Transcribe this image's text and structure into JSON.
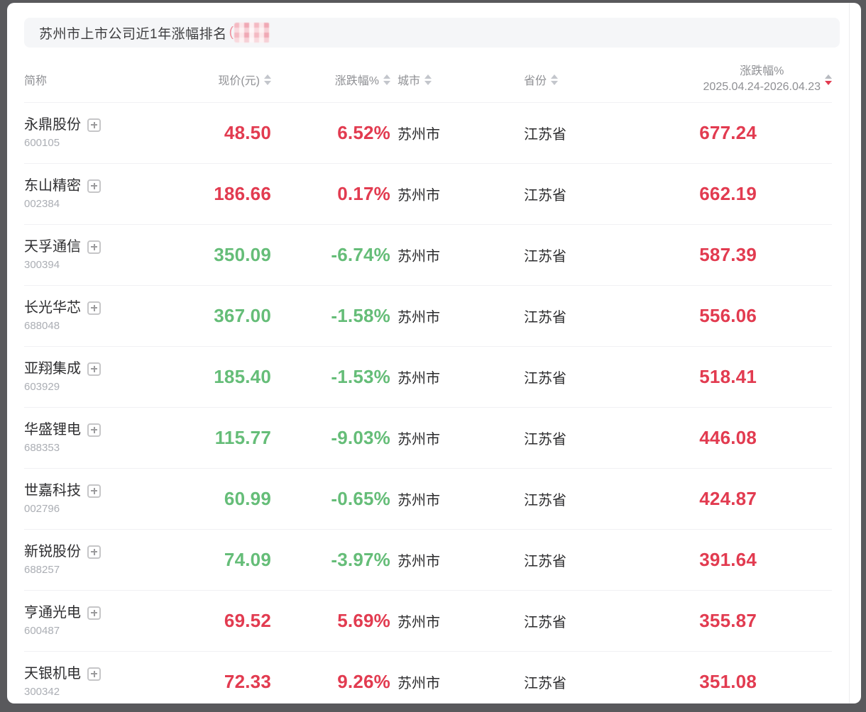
{
  "title": {
    "text": "苏州市上市公司近1年涨幅排名",
    "paren": "(",
    "redacted_note": "blurred-pink-block"
  },
  "colors": {
    "up": "#e23b50",
    "down": "#65bd78",
    "frame": "#59595c",
    "header_text": "#8f9094"
  },
  "table": {
    "columns": [
      {
        "label": "简称",
        "sortable": false,
        "align": "left"
      },
      {
        "label": "现价(元)",
        "sortable": true,
        "align": "right"
      },
      {
        "label": "涨跌幅%",
        "sortable": true,
        "align": "right"
      },
      {
        "label": "城市",
        "sortable": true,
        "align": "left"
      },
      {
        "label": "省份",
        "sortable": true,
        "align": "left"
      },
      {
        "label": "涨跌幅%",
        "sublabel": "2025.04.24-2026.04.23",
        "sortable": true,
        "sorted": "desc",
        "align": "right"
      }
    ],
    "rows": [
      {
        "name": "永鼎股份",
        "code": "600105",
        "price": "48.50",
        "change": "6.52%",
        "trend": "up",
        "city": "苏州市",
        "province": "江苏省",
        "period_change": "677.24"
      },
      {
        "name": "东山精密",
        "code": "002384",
        "price": "186.66",
        "change": "0.17%",
        "trend": "up",
        "city": "苏州市",
        "province": "江苏省",
        "period_change": "662.19"
      },
      {
        "name": "天孚通信",
        "code": "300394",
        "price": "350.09",
        "change": "-6.74%",
        "trend": "down",
        "city": "苏州市",
        "province": "江苏省",
        "period_change": "587.39"
      },
      {
        "name": "长光华芯",
        "code": "688048",
        "price": "367.00",
        "change": "-1.58%",
        "trend": "down",
        "city": "苏州市",
        "province": "江苏省",
        "period_change": "556.06"
      },
      {
        "name": "亚翔集成",
        "code": "603929",
        "price": "185.40",
        "change": "-1.53%",
        "trend": "down",
        "city": "苏州市",
        "province": "江苏省",
        "period_change": "518.41"
      },
      {
        "name": "华盛锂电",
        "code": "688353",
        "price": "115.77",
        "change": "-9.03%",
        "trend": "down",
        "city": "苏州市",
        "province": "江苏省",
        "period_change": "446.08"
      },
      {
        "name": "世嘉科技",
        "code": "002796",
        "price": "60.99",
        "change": "-0.65%",
        "trend": "down",
        "city": "苏州市",
        "province": "江苏省",
        "period_change": "424.87"
      },
      {
        "name": "新锐股份",
        "code": "688257",
        "price": "74.09",
        "change": "-3.97%",
        "trend": "down",
        "city": "苏州市",
        "province": "江苏省",
        "period_change": "391.64"
      },
      {
        "name": "亨通光电",
        "code": "600487",
        "price": "69.52",
        "change": "5.69%",
        "trend": "up",
        "city": "苏州市",
        "province": "江苏省",
        "period_change": "355.87"
      },
      {
        "name": "天银机电",
        "code": "300342",
        "price": "72.33",
        "change": "9.26%",
        "trend": "up",
        "city": "苏州市",
        "province": "江苏省",
        "period_change": "351.08"
      }
    ]
  }
}
